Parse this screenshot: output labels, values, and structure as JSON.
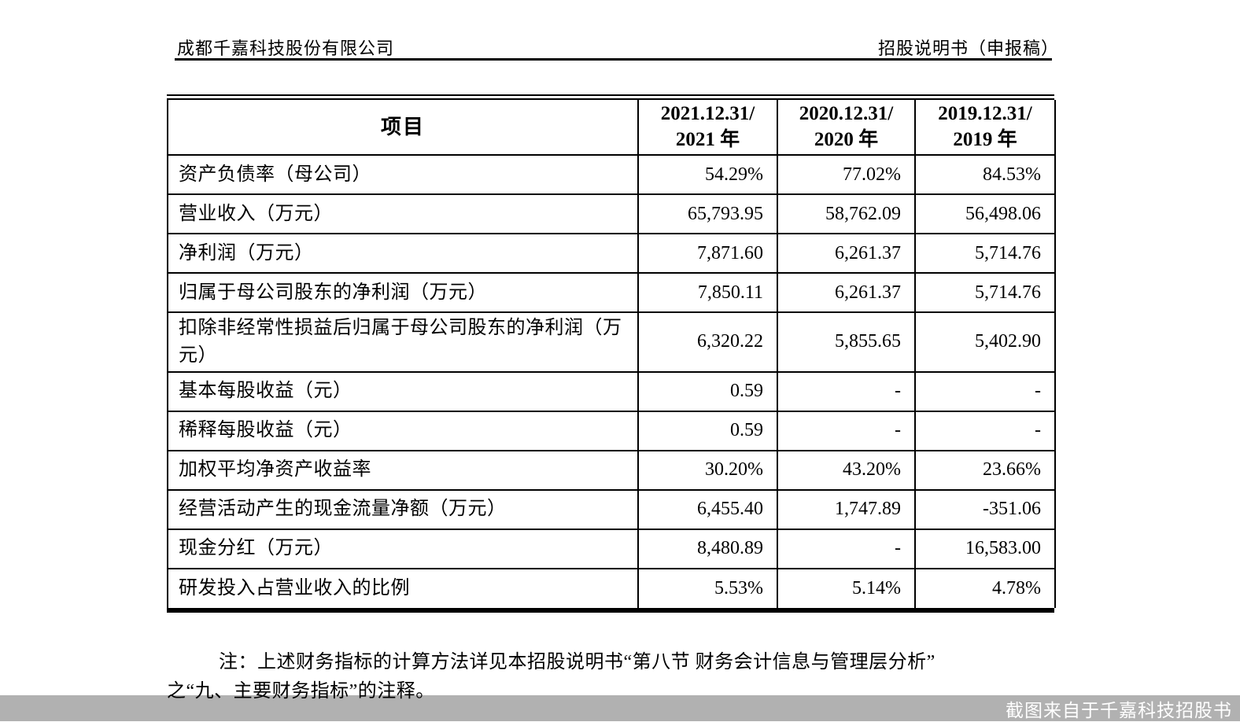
{
  "page_header": {
    "company": "成都千嘉科技股份有限公司",
    "doc_title": "招股说明书（申报稿）"
  },
  "table": {
    "item_header": "项目",
    "period_headers": [
      [
        "2021.12.31/",
        "2021 年"
      ],
      [
        "2020.12.31/",
        "2020 年"
      ],
      [
        "2019.12.31/",
        "2019 年"
      ]
    ],
    "rows": [
      {
        "label": "资产负债率（母公司）",
        "values": [
          "54.29%",
          "77.02%",
          "84.53%"
        ]
      },
      {
        "label": "营业收入（万元）",
        "values": [
          "65,793.95",
          "58,762.09",
          "56,498.06"
        ]
      },
      {
        "label": "净利润（万元）",
        "values": [
          "7,871.60",
          "6,261.37",
          "5,714.76"
        ]
      },
      {
        "label": "归属于母公司股东的净利润（万元）",
        "values": [
          "7,850.11",
          "6,261.37",
          "5,714.76"
        ]
      },
      {
        "label": "扣除非经常性损益后归属于母公司股东的净利润（万元）",
        "values": [
          "6,320.22",
          "5,855.65",
          "5,402.90"
        ]
      },
      {
        "label": "基本每股收益（元）",
        "values": [
          "0.59",
          "-",
          "-"
        ]
      },
      {
        "label": "稀释每股收益（元）",
        "values": [
          "0.59",
          "-",
          "-"
        ]
      },
      {
        "label": "加权平均净资产收益率",
        "values": [
          "30.20%",
          "43.20%",
          "23.66%"
        ]
      },
      {
        "label": "经营活动产生的现金流量净额（万元）",
        "values": [
          "6,455.40",
          "1,747.89",
          "-351.06"
        ]
      },
      {
        "label": "现金分红（万元）",
        "values": [
          "8,480.89",
          "-",
          "16,583.00"
        ]
      },
      {
        "label": "研发投入占营业收入的比例",
        "values": [
          "5.53%",
          "5.14%",
          "4.78%"
        ]
      }
    ]
  },
  "note": {
    "line1": "注：上述财务指标的计算方法详见本招股说明书“第八节 财务会计信息与管理层分析”",
    "line2": "之“九、主要财务指标”的注释。"
  },
  "watermark": {
    "text": "截图来自于千嘉科技招股书",
    "bar_color": "#b1b1b1",
    "text_color": "#ffffff"
  }
}
